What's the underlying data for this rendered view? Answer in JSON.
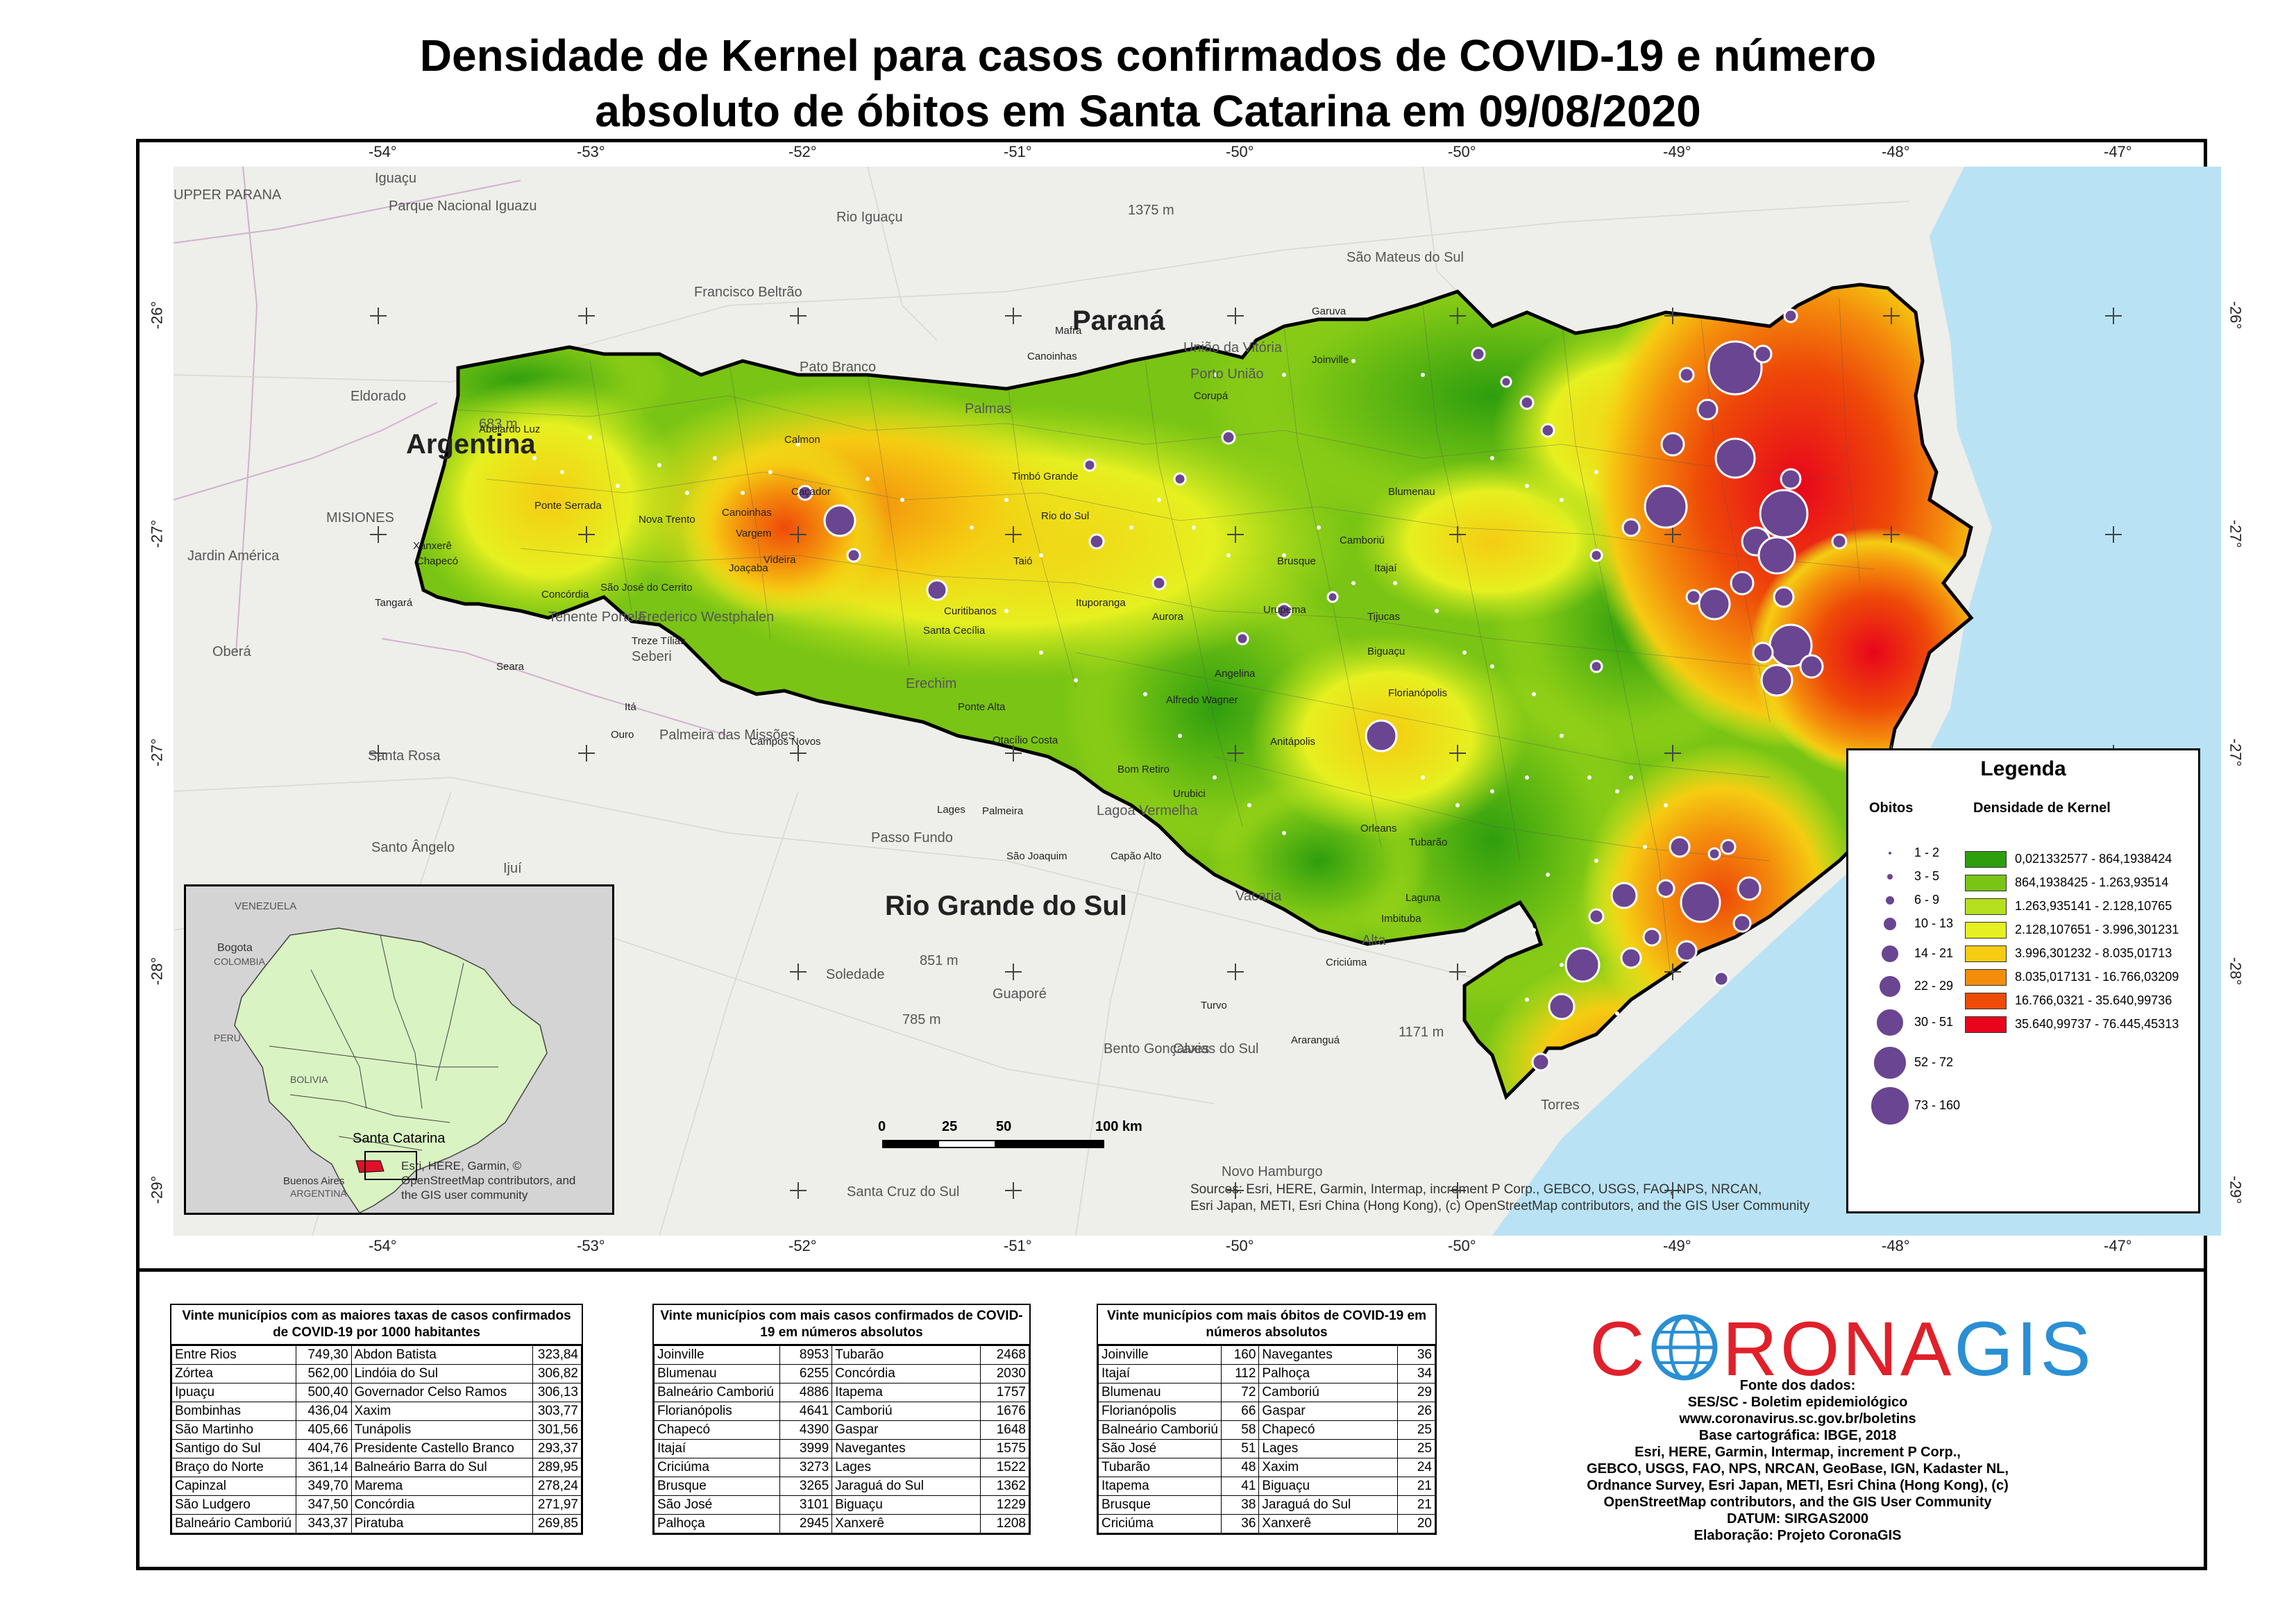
{
  "title": {
    "line1": "Densidade de Kernel para casos confirmados de COVID-19 e número",
    "line2": "absoluto de óbitos em Santa Catarina em 09/08/2020"
  },
  "axes": {
    "lon_top": [
      "-54°",
      "-53°",
      "-52°",
      "-51°",
      "-50°",
      "-50°",
      "-49°",
      "-48°",
      "-47°"
    ],
    "lon_bottom": [
      "-54°",
      "-53°",
      "-52°",
      "-51°",
      "-50°",
      "-50°",
      "-49°",
      "-48°",
      "-47°"
    ],
    "lat_left": [
      "-26°",
      "-27°",
      "-27°",
      "-28°",
      "-29°"
    ],
    "lat_right": [
      "-26°",
      "-27°",
      "-27°",
      "-28°",
      "-29°"
    ]
  },
  "map_labels": {
    "parana": "Paraná",
    "argentina": "Argentina",
    "rio_grande": "Rio Grande do Sul",
    "places": [
      "Iguaçu",
      "UPPER PARANA",
      "Parque Nacional Iguazu",
      "Rio Iguaçu",
      "1375 m",
      "Francisco Beltrão",
      "São Mateus do Sul",
      "Pato Branco",
      "Palmas",
      "Eldorado",
      "MISIONES",
      "Jardin América",
      "Oberá",
      "Tenente Portela",
      "Frederico Westphalen",
      "Seberi",
      "Erechim",
      "Palmeira das Missões",
      "Santa Rosa",
      "Santo Ângelo",
      "Passo Fundo",
      "Lagoa Vermelha",
      "Ijuí",
      "Vacaria",
      "Soledade",
      "Guaporé",
      "Bento Gonçalves",
      "Caxias do Sul",
      "Santa Cruz do Sul",
      "Novo Hamburgo",
      "851 m",
      "785 m",
      "1171 m",
      "683 m",
      "Alta",
      "Torres",
      "União da Vitória",
      "Porto União"
    ],
    "cities": [
      "Joinville",
      "Garuva",
      "Mafra",
      "Corupá",
      "Canoinhas",
      "Caçador",
      "Calmon",
      "Timbó Grande",
      "Chapecó",
      "Xanxerê",
      "Abelardo Luz",
      "Ponte Serrada",
      "Concórdia",
      "Joaçaba",
      "Videira",
      "Curitibanos",
      "Lages",
      "São Joaquim",
      "Urubici",
      "Bom Retiro",
      "Blumenau",
      "Itajaí",
      "Camboriú",
      "Florianópolis",
      "Biguaçu",
      "Tijucas",
      "Brusque",
      "Rio do Sul",
      "Taió",
      "Ituporanga",
      "Aurora",
      "Angelina",
      "Anitápolis",
      "Orleans",
      "Tubarão",
      "Laguna",
      "Imbituba",
      "Criciúma",
      "Turvo",
      "Araranguá",
      "Canoinhas",
      "Santa Cecília",
      "Ponte Alta",
      "Otacílio Costa",
      "Alfredo Wagner",
      "Capão Alto",
      "Palmeira",
      "Urupema",
      "Nova Trento",
      "Treze Tílias",
      "Campos Novos",
      "Vargem",
      "São José do Cerrito",
      "Tangará",
      "Seara",
      "Itá",
      "Ouro",
      "Piratuba"
    ]
  },
  "legend": {
    "title": "Legenda",
    "obitos_header": "Obitos",
    "kernel_header": "Densidade de Kernel",
    "obitos": [
      "1 - 2",
      "3 - 5",
      "6 - 9",
      "10 - 13",
      "14 - 21",
      "22 - 29",
      "30 - 51",
      "52 - 72",
      "73 - 160"
    ],
    "kernel": [
      {
        "label": "0,021332577 - 864,1938424",
        "color": "#2e9e0e"
      },
      {
        "label": "864,1938425 - 1.263,93514",
        "color": "#79c414"
      },
      {
        "label": "1.263,935141 - 2.128,10765",
        "color": "#b4e01d"
      },
      {
        "label": "2.128,107651 - 3.996,301231",
        "color": "#e6f020"
      },
      {
        "label": "3.996,301232 - 8.035,01713",
        "color": "#f5cc12"
      },
      {
        "label": "8.035,017131 - 16.766,03209",
        "color": "#f48c0c"
      },
      {
        "label": "16.766,0321 - 35.640,99736",
        "color": "#ee4a08"
      },
      {
        "label": "35.640,99737 - 76.445,45313",
        "color": "#e8051c"
      }
    ]
  },
  "scale": {
    "labels": [
      "0",
      "25",
      "50",
      "100 km"
    ]
  },
  "credits": {
    "line1": "Sources: Esri, HERE, Garmin, Intermap, increment P Corp., GEBCO, USGS, FAO, NPS, NRCAN,",
    "line2": "Esri Japan, METI, Esri China (Hong Kong), (c) OpenStreetMap contributors, and the GIS User Community"
  },
  "inset": {
    "countries": [
      "VENEZUELA",
      "Bogota",
      "COLOMBIA",
      "PERU",
      "BOLIVIA",
      "ARGENTINA",
      "Buenos Aires"
    ],
    "label": "Santa Catarina",
    "credits": "Esri, HERE, Garmin, © OpenStreetMap contributors, and the GIS user community"
  },
  "tables": [
    {
      "title": "Vinte municípios com as maiores taxas de casos confirmados de COVID-19 por 1000 habitantes",
      "rows": [
        [
          "Entre Rios",
          "749,30",
          "Abdon Batista",
          "323,84"
        ],
        [
          "Zórtea",
          "562,00",
          "Lindóia do Sul",
          "306,82"
        ],
        [
          "Ipuaçu",
          "500,40",
          "Governador Celso Ramos",
          "306,13"
        ],
        [
          "Bombinhas",
          "436,04",
          "Xaxim",
          "303,77"
        ],
        [
          "São Martinho",
          "405,66",
          "Tunápolis",
          "301,56"
        ],
        [
          "Santigo do Sul",
          "404,76",
          "Presidente Castello Branco",
          "293,37"
        ],
        [
          "Braço do Norte",
          "361,14",
          "Balneário Barra do Sul",
          "289,95"
        ],
        [
          "Capinzal",
          "349,70",
          "Marema",
          "278,24"
        ],
        [
          "São Ludgero",
          "347,50",
          "Concórdia",
          "271,97"
        ],
        [
          "Balneário Camboriú",
          "343,37",
          "Piratuba",
          "269,85"
        ]
      ]
    },
    {
      "title": "Vinte municípios com mais casos confirmados de COVID-19 em números absolutos",
      "rows": [
        [
          "Joinville",
          "8953",
          "Tubarão",
          "2468"
        ],
        [
          "Blumenau",
          "6255",
          "Concórdia",
          "2030"
        ],
        [
          "Balneário Camboriú",
          "4886",
          "Itapema",
          "1757"
        ],
        [
          "Florianópolis",
          "4641",
          "Camboriú",
          "1676"
        ],
        [
          "Chapecó",
          "4390",
          "Gaspar",
          "1648"
        ],
        [
          "Itajaí",
          "3999",
          "Navegantes",
          "1575"
        ],
        [
          "Criciúma",
          "3273",
          "Lages",
          "1522"
        ],
        [
          "Brusque",
          "3265",
          "Jaraguá do Sul",
          "1362"
        ],
        [
          "São José",
          "3101",
          "Biguaçu",
          "1229"
        ],
        [
          "Palhoça",
          "2945",
          "Xanxerê",
          "1208"
        ]
      ]
    },
    {
      "title": "Vinte municípios com mais óbitos de COVID-19 em números absolutos",
      "rows": [
        [
          "Joinville",
          "160",
          "Navegantes",
          "36"
        ],
        [
          "Itajaí",
          "112",
          "Palhoça",
          "34"
        ],
        [
          "Blumenau",
          "72",
          "Camboriú",
          "29"
        ],
        [
          "Florianópolis",
          "66",
          "Gaspar",
          "26"
        ],
        [
          "Balneário Camboriú",
          "58",
          "Chapecó",
          "25"
        ],
        [
          "São José",
          "51",
          "Lages",
          "25"
        ],
        [
          "Tubarão",
          "48",
          "Xaxim",
          "24"
        ],
        [
          "Itapema",
          "41",
          "Biguaçu",
          "21"
        ],
        [
          "Brusque",
          "38",
          "Jaraguá do Sul",
          "21"
        ],
        [
          "Criciúma",
          "36",
          "Xanxerê",
          "20"
        ]
      ]
    }
  ],
  "brand": {
    "name_part1": "C",
    "name_part2": "RONA",
    "name_part3": "GIS"
  },
  "sources": [
    "Fonte dos dados:",
    "SES/SC - Boletim epidemiológico",
    "www.coronavirus.sc.gov.br/boletins",
    "Base cartográfica: IBGE, 2018",
    "Esri, HERE, Garmin, Intermap, increment P Corp.,",
    "GEBCO, USGS, FAO, NPS, NRCAN, GeoBase, IGN, Kadaster NL,",
    "Ordnance Survey, Esri Japan, METI, Esri China (Hong Kong), (c)",
    "OpenStreetMap contributors, and the GIS User Community",
    "DATUM: SIRGAS2000",
    "Elaboração: Projeto CoronaGIS"
  ],
  "colors": {
    "ocean": "#b9e3f5",
    "land": "#eeeeea",
    "obitos_dot": "#6a4591",
    "brand_red": "#e0202a",
    "brand_blue": "#2a8fd4"
  }
}
